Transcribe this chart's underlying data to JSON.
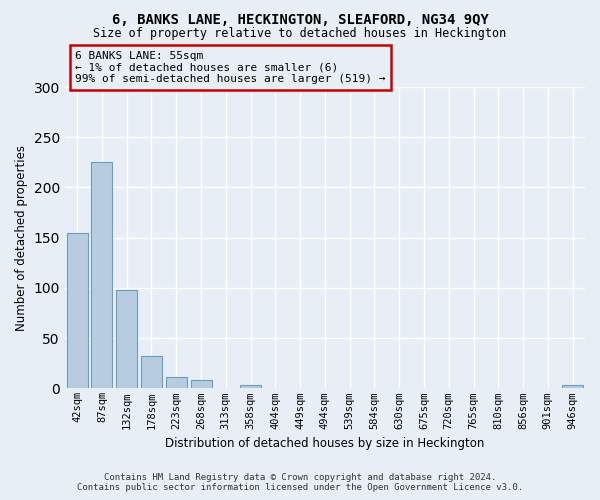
{
  "title1": "6, BANKS LANE, HECKINGTON, SLEAFORD, NG34 9QY",
  "title2": "Size of property relative to detached houses in Heckington",
  "xlabel": "Distribution of detached houses by size in Heckington",
  "ylabel": "Number of detached properties",
  "bar_values": [
    155,
    225,
    98,
    32,
    11,
    8,
    0,
    3,
    0,
    0,
    0,
    0,
    0,
    0,
    0,
    0,
    0,
    0,
    0,
    0,
    3
  ],
  "bar_labels": [
    "42sqm",
    "87sqm",
    "132sqm",
    "178sqm",
    "223sqm",
    "268sqm",
    "313sqm",
    "358sqm",
    "404sqm",
    "449sqm",
    "494sqm",
    "539sqm",
    "584sqm",
    "630sqm",
    "675sqm",
    "720sqm",
    "765sqm",
    "810sqm",
    "856sqm",
    "901sqm",
    "946sqm"
  ],
  "bar_color": "#b8ccdf",
  "bar_edge_color": "#6a9ec0",
  "bg_color": "#e8eef5",
  "annotation_box_color": "#cc0000",
  "annotation_text": "6 BANKS LANE: 55sqm\n← 1% of detached houses are smaller (6)\n99% of semi-detached houses are larger (519) →",
  "grid_color": "#ffffff",
  "ylim": [
    0,
    300
  ],
  "yticks": [
    0,
    50,
    100,
    150,
    200,
    250,
    300
  ],
  "footer1": "Contains HM Land Registry data © Crown copyright and database right 2024.",
  "footer2": "Contains public sector information licensed under the Open Government Licence v3.0."
}
